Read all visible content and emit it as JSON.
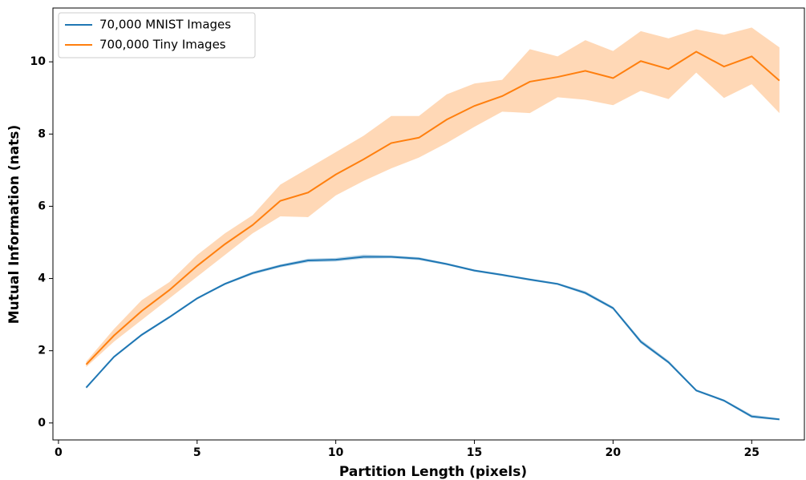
{
  "chart_data": {
    "type": "line",
    "xlabel": "Partition Length (pixels)",
    "ylabel": "Mutual Information (nats)",
    "x": [
      1,
      2,
      3,
      4,
      5,
      6,
      7,
      8,
      9,
      10,
      11,
      12,
      13,
      14,
      15,
      16,
      17,
      18,
      19,
      20,
      21,
      22,
      23,
      24,
      25,
      26
    ],
    "series": [
      {
        "name": "70,000 MNIST Images",
        "color": "#1f77b4",
        "values": [
          0.98,
          1.83,
          2.44,
          2.93,
          3.45,
          3.85,
          4.15,
          4.35,
          4.5,
          4.52,
          4.6,
          4.6,
          4.55,
          4.4,
          4.22,
          4.1,
          3.97,
          3.85,
          3.6,
          3.18,
          2.25,
          1.68,
          0.9,
          0.62,
          0.18,
          0.1
        ],
        "lower": [
          0.95,
          1.8,
          2.41,
          2.9,
          3.42,
          3.82,
          4.11,
          4.31,
          4.45,
          4.47,
          4.55,
          4.56,
          4.51,
          4.37,
          4.19,
          4.07,
          3.94,
          3.82,
          3.56,
          3.14,
          2.2,
          1.64,
          0.87,
          0.59,
          0.14,
          0.07
        ],
        "upper": [
          1.01,
          1.86,
          2.47,
          2.96,
          3.48,
          3.88,
          4.19,
          4.39,
          4.55,
          4.57,
          4.66,
          4.64,
          4.59,
          4.43,
          4.25,
          4.13,
          4.0,
          3.88,
          3.65,
          3.22,
          2.31,
          1.73,
          0.93,
          0.65,
          0.23,
          0.13
        ]
      },
      {
        "name": "700,000 Tiny Images",
        "color": "#ff7f0e",
        "values": [
          1.62,
          2.42,
          3.1,
          3.68,
          4.35,
          4.95,
          5.48,
          6.15,
          6.38,
          6.88,
          7.3,
          7.75,
          7.9,
          8.4,
          8.78,
          9.05,
          9.45,
          9.58,
          9.75,
          9.55,
          10.02,
          9.8,
          10.28,
          9.87,
          10.15,
          9.48
        ],
        "lower": [
          1.55,
          2.25,
          2.85,
          3.45,
          4.05,
          4.65,
          5.25,
          5.72,
          5.7,
          6.3,
          6.7,
          7.05,
          7.35,
          7.75,
          8.2,
          8.62,
          8.58,
          9.02,
          8.95,
          8.8,
          9.2,
          8.97,
          9.7,
          9.0,
          9.38,
          8.58
        ],
        "upper": [
          1.7,
          2.6,
          3.4,
          3.9,
          4.65,
          5.25,
          5.75,
          6.6,
          7.05,
          7.5,
          7.95,
          8.5,
          8.5,
          9.1,
          9.4,
          9.5,
          10.35,
          10.15,
          10.6,
          10.3,
          10.85,
          10.65,
          10.9,
          10.75,
          10.95,
          10.4
        ]
      }
    ],
    "xlim": [
      -0.2,
      26.9
    ],
    "ylim": [
      -0.47,
      11.49
    ],
    "xticks": [
      0,
      5,
      10,
      15,
      20,
      25
    ],
    "yticks": [
      0,
      2,
      4,
      6,
      8,
      10
    ],
    "legend": "upper-left"
  }
}
